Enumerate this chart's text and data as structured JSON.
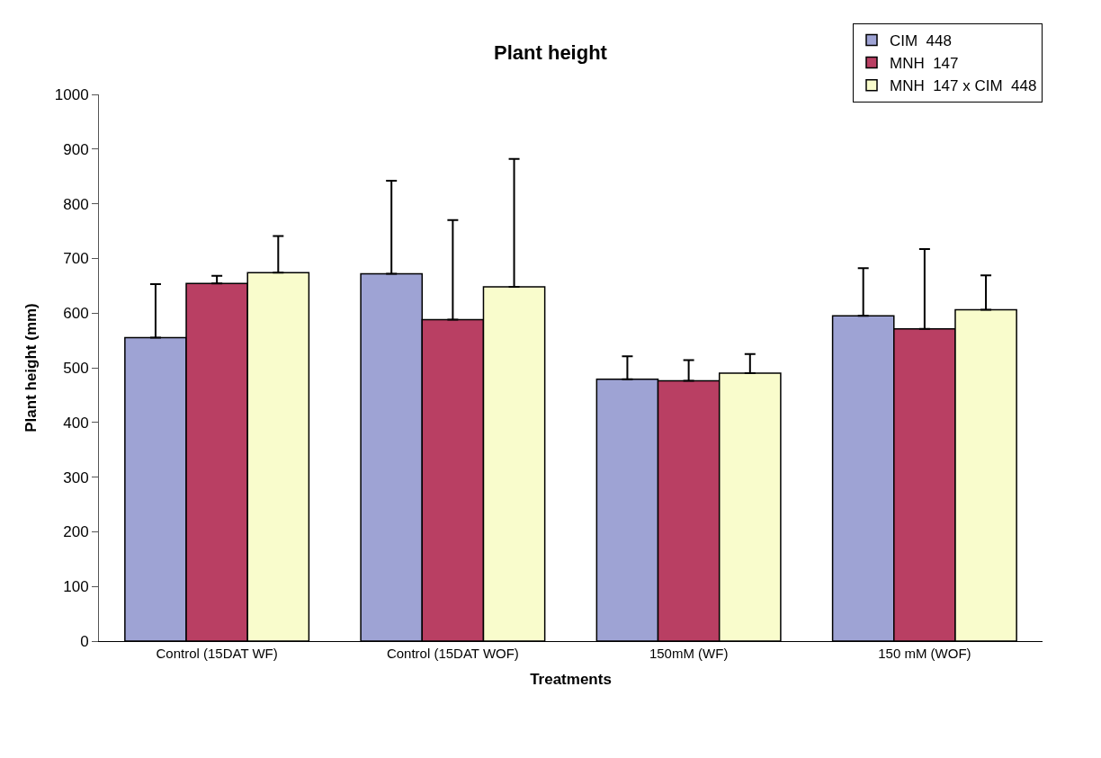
{
  "chart_data": {
    "type": "bar",
    "title": "Plant height",
    "xlabel": "Treatments",
    "ylabel": "Plant height (mm)",
    "categories": [
      "Control (15DAT WF)",
      "Control (15DAT WOF)",
      "150mM (WF)",
      "150 mM (WOF)"
    ],
    "series": [
      {
        "name": "CIM  448",
        "color": "#9ea3d4",
        "values": [
          555,
          672,
          479,
          595
        ],
        "errors": [
          [
            555,
            653
          ],
          [
            672,
            842
          ],
          [
            479,
            521
          ],
          [
            595,
            682
          ]
        ]
      },
      {
        "name": "MNH  147",
        "color": "#b93f63",
        "values": [
          654,
          588,
          476,
          571
        ],
        "errors": [
          [
            654,
            668
          ],
          [
            588,
            770
          ],
          [
            476,
            514
          ],
          [
            571,
            717
          ]
        ]
      },
      {
        "name": "MNH  147 x CIM  448",
        "color": "#f9fccc",
        "values": [
          674,
          648,
          490,
          606
        ],
        "errors": [
          [
            674,
            741
          ],
          [
            648,
            882
          ],
          [
            490,
            525
          ],
          [
            606,
            669
          ]
        ]
      }
    ],
    "ylim": [
      0,
      1000
    ],
    "yticks": [
      0,
      100,
      200,
      300,
      400,
      500,
      600,
      700,
      800,
      900,
      1000
    ],
    "grid": false,
    "legend": "top right"
  }
}
